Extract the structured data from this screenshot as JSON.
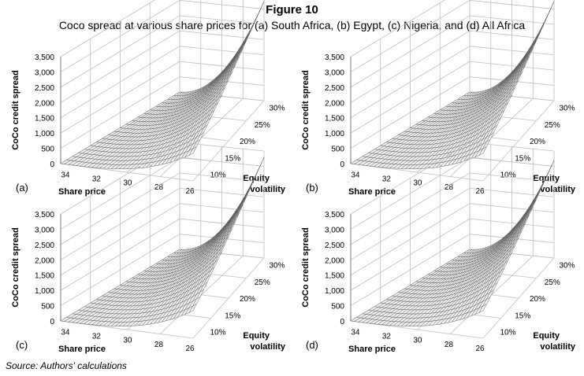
{
  "figure": {
    "title": "Figure 10",
    "subtitle": "Coco spread at various share prices for (a) South Africa, (b) Egypt, (c) Nigeria, and (d) All Africa",
    "source": "Source: Authors' calculations"
  },
  "chart_data": [
    {
      "type": "surface",
      "panel_label": "(a)",
      "zlabel": "CoCo credit spread",
      "xlabel": "Share price",
      "ylabel": "Equity volatility",
      "x_ticks": [
        "34",
        "32",
        "30",
        "28",
        "26"
      ],
      "y_ticks": [
        "10%",
        "15%",
        "20%",
        "25%",
        "30%"
      ],
      "z_ticks": [
        "0",
        "500",
        "1,000",
        "1,500",
        "2,000",
        "2,500",
        "3,000",
        "3,500"
      ],
      "xlim": [
        26,
        34.5
      ],
      "ylim": [
        0.08,
        0.32
      ],
      "zlim": [
        0,
        3500
      ],
      "peak": 3250
    },
    {
      "type": "surface",
      "panel_label": "(b)",
      "zlabel": "CoCo credit spread",
      "xlabel": "Share price",
      "ylabel": "Equity volatility",
      "x_ticks": [
        "34",
        "32",
        "30",
        "28",
        "26"
      ],
      "y_ticks": [
        "10%",
        "15%",
        "20%",
        "25%",
        "30%"
      ],
      "z_ticks": [
        "0",
        "500",
        "1,000",
        "1,500",
        "2,000",
        "2,500",
        "3,000",
        "3,500"
      ],
      "xlim": [
        26,
        34.5
      ],
      "ylim": [
        0.08,
        0.32
      ],
      "zlim": [
        0,
        3500
      ],
      "peak": 3250
    },
    {
      "type": "surface",
      "panel_label": "(c)",
      "zlabel": "CoCo credit spread",
      "xlabel": "Share price",
      "ylabel": "Equity volatility",
      "x_ticks": [
        "34",
        "32",
        "30",
        "28",
        "26"
      ],
      "y_ticks": [
        "10%",
        "15%",
        "20%",
        "25%",
        "30%"
      ],
      "z_ticks": [
        "0",
        "500",
        "1,000",
        "1,500",
        "2,000",
        "2,500",
        "3,000",
        "3,500"
      ],
      "xlim": [
        26,
        34.5
      ],
      "ylim": [
        0.08,
        0.32
      ],
      "zlim": [
        0,
        3500
      ],
      "peak": 3300
    },
    {
      "type": "surface",
      "panel_label": "(d)",
      "zlabel": "CoCo credit spread",
      "xlabel": "Share price",
      "ylabel": "Equity volatility",
      "x_ticks": [
        "34",
        "32",
        "30",
        "28",
        "26"
      ],
      "y_ticks": [
        "10%",
        "15%",
        "20%",
        "25%",
        "30%"
      ],
      "z_ticks": [
        "0",
        "500",
        "1,000",
        "1,500",
        "2,000",
        "2,500",
        "3,000",
        "3,500"
      ],
      "xlim": [
        26,
        34.5
      ],
      "ylim": [
        0.08,
        0.32
      ],
      "zlim": [
        0,
        3500
      ],
      "peak": 3200
    }
  ]
}
